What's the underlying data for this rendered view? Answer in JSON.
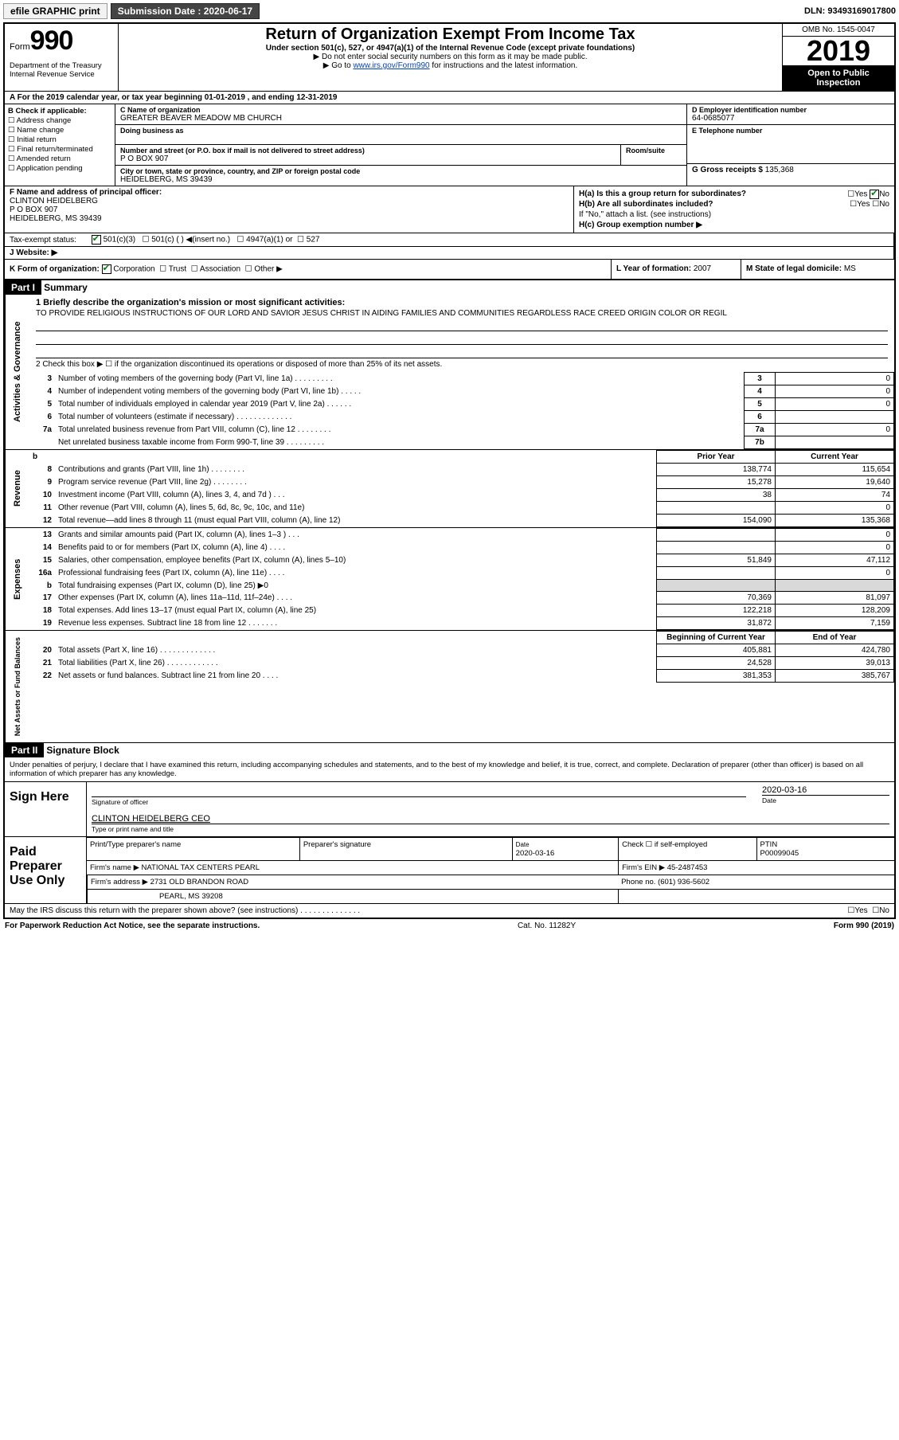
{
  "topbar": {
    "efile": "efile GRAPHIC print",
    "submission_label": "Submission Date : 2020-06-17",
    "dln": "DLN: 93493169017800"
  },
  "header": {
    "form_prefix": "Form",
    "form_num": "990",
    "title": "Return of Organization Exempt From Income Tax",
    "sub1": "Under section 501(c), 527, or 4947(a)(1) of the Internal Revenue Code (except private foundations)",
    "sub2": "▶ Do not enter social security numbers on this form as it may be made public.",
    "sub3_pre": "▶ Go to ",
    "sub3_link": "www.irs.gov/Form990",
    "sub3_post": " for instructions and the latest information.",
    "omb": "OMB No. 1545-0047",
    "year": "2019",
    "open_pub": "Open to Public Inspection",
    "dept": "Department of the Treasury\nInternal Revenue Service"
  },
  "a_line": "A For the 2019 calendar year, or tax year beginning 01-01-2019   , and ending 12-31-2019",
  "b": {
    "title": "B Check if applicable:",
    "items": [
      "Address change",
      "Name change",
      "Initial return",
      "Final return/terminated",
      "Amended return",
      "Application pending"
    ]
  },
  "c": {
    "name_lbl": "C Name of organization",
    "name": "GREATER BEAVER MEADOW MB CHURCH",
    "dba_lbl": "Doing business as",
    "addr_lbl": "Number and street (or P.O. box if mail is not delivered to street address)",
    "room_lbl": "Room/suite",
    "addr": "P O BOX 907",
    "city_lbl": "City or town, state or province, country, and ZIP or foreign postal code",
    "city": "HEIDELBERG, MS  39439"
  },
  "d": {
    "lbl": "D Employer identification number",
    "val": "64-0685077"
  },
  "e": {
    "lbl": "E Telephone number",
    "val": ""
  },
  "g": {
    "lbl": "G Gross receipts $",
    "val": "135,368"
  },
  "f": {
    "lbl": "F  Name and address of principal officer:",
    "v1": "CLINTON HEIDELBERG",
    "v2": "P O BOX 907",
    "v3": "HEIDELBERG, MS  39439"
  },
  "h": {
    "a": "H(a)  Is this a group return for subordinates?",
    "b": "H(b)  Are all subordinates included?",
    "b_note": "If \"No,\" attach a list. (see instructions)",
    "c": "H(c)  Group exemption number ▶",
    "yes": "Yes",
    "no": "No"
  },
  "i": {
    "lbl": "Tax-exempt status:",
    "o1": "501(c)(3)",
    "o2": "501(c) (  ) ◀(insert no.)",
    "o3": "4947(a)(1) or",
    "o4": "527"
  },
  "j": {
    "lbl": "J   Website: ▶"
  },
  "k": {
    "lbl": "K Form of organization:",
    "o1": "Corporation",
    "o2": "Trust",
    "o3": "Association",
    "o4": "Other ▶"
  },
  "l": {
    "lbl": "L Year of formation:",
    "val": "2007"
  },
  "m": {
    "lbl": "M State of legal domicile:",
    "val": "MS"
  },
  "partI": {
    "tag": "Part I",
    "title": "Summary",
    "q1_lbl": "1  Briefly describe the organization's mission or most significant activities:",
    "q1_txt": "TO PROVIDE RELIGIOUS INSTRUCTIONS OF OUR LORD AND SAVIOR JESUS CHRIST IN AIDING FAMILIES AND COMMUNITIES REGARDLESS RACE CREED ORIGIN COLOR OR REGIL",
    "q2": "2    Check this box ▶ ☐  if the organization discontinued its operations or disposed of more than 25% of its net assets.",
    "rows_ag": [
      {
        "n": "3",
        "d": "Number of voting members of the governing body (Part VI, line 1a)  .   .   .   .   .   .   .   .   .",
        "rn": "3",
        "v": "0"
      },
      {
        "n": "4",
        "d": "Number of independent voting members of the governing body (Part VI, line 1b)   .   .   .   .   .",
        "rn": "4",
        "v": "0"
      },
      {
        "n": "5",
        "d": "Total number of individuals employed in calendar year 2019 (Part V, line 2a)   .   .   .   .   .   .",
        "rn": "5",
        "v": "0"
      },
      {
        "n": "6",
        "d": "Total number of volunteers (estimate if necessary)    .   .   .   .   .   .   .   .   .   .   .   .   .",
        "rn": "6",
        "v": ""
      },
      {
        "n": "7a",
        "d": "Total unrelated business revenue from Part VIII, column (C), line 12    .   .   .   .   .   .   .   .",
        "rn": "7a",
        "v": "0"
      },
      {
        "n": "",
        "d": "Net unrelated business taxable income from Form 990-T, line 39    .   .   .   .   .   .   .   .   .",
        "rn": "7b",
        "v": ""
      }
    ],
    "col_py": "Prior Year",
    "col_cy": "Current Year",
    "rows_rev": [
      {
        "n": "8",
        "d": "Contributions and grants (Part VIII, line 1h)    .   .   .   .   .   .   .   .",
        "py": "138,774",
        "cy": "115,654"
      },
      {
        "n": "9",
        "d": "Program service revenue (Part VIII, line 2g)    .   .   .   .   .   .   .   .",
        "py": "15,278",
        "cy": "19,640"
      },
      {
        "n": "10",
        "d": "Investment income (Part VIII, column (A), lines 3, 4, and 7d )    .   .   .",
        "py": "38",
        "cy": "74"
      },
      {
        "n": "11",
        "d": "Other revenue (Part VIII, column (A), lines 5, 6d, 8c, 9c, 10c, and 11e)",
        "py": "",
        "cy": "0"
      },
      {
        "n": "12",
        "d": "Total revenue—add lines 8 through 11 (must equal Part VIII, column (A), line 12)",
        "py": "154,090",
        "cy": "135,368"
      }
    ],
    "rows_exp": [
      {
        "n": "13",
        "d": "Grants and similar amounts paid (Part IX, column (A), lines 1–3 )   .   .   .",
        "py": "",
        "cy": "0"
      },
      {
        "n": "14",
        "d": "Benefits paid to or for members (Part IX, column (A), line 4)    .   .   .   .",
        "py": "",
        "cy": "0"
      },
      {
        "n": "15",
        "d": "Salaries, other compensation, employee benefits (Part IX, column (A), lines 5–10)",
        "py": "51,849",
        "cy": "47,112"
      },
      {
        "n": "16a",
        "d": "Professional fundraising fees (Part IX, column (A), line 11e)    .   .   .   .",
        "py": "",
        "cy": "0"
      },
      {
        "n": "b",
        "d": "Total fundraising expenses (Part IX, column (D), line 25) ▶0",
        "py": "shade",
        "cy": "shade"
      },
      {
        "n": "17",
        "d": "Other expenses (Part IX, column (A), lines 11a–11d, 11f–24e)    .   .   .   .",
        "py": "70,369",
        "cy": "81,097"
      },
      {
        "n": "18",
        "d": "Total expenses. Add lines 13–17 (must equal Part IX, column (A), line 25)",
        "py": "122,218",
        "cy": "128,209"
      },
      {
        "n": "19",
        "d": "Revenue less expenses. Subtract line 18 from line 12   .   .   .   .   .   .   .",
        "py": "31,872",
        "cy": "7,159"
      }
    ],
    "col_bcy": "Beginning of Current Year",
    "col_eoy": "End of Year",
    "rows_na": [
      {
        "n": "20",
        "d": "Total assets (Part X, line 16)   .   .   .   .   .   .   .   .   .   .   .   .   .",
        "py": "405,881",
        "cy": "424,780"
      },
      {
        "n": "21",
        "d": "Total liabilities (Part X, line 26)   .   .   .   .   .   .   .   .   .   .   .   .",
        "py": "24,528",
        "cy": "39,013"
      },
      {
        "n": "22",
        "d": "Net assets or fund balances. Subtract line 21 from line 20   .   .   .   .",
        "py": "381,353",
        "cy": "385,767"
      }
    ],
    "side_ag": "Activities & Governance",
    "side_rev": "Revenue",
    "side_exp": "Expenses",
    "side_na": "Net Assets or Fund Balances"
  },
  "partII": {
    "tag": "Part II",
    "title": "Signature Block",
    "decl": "Under penalties of perjury, I declare that I have examined this return, including accompanying schedules and statements, and to the best of my knowledge and belief, it is true, correct, and complete. Declaration of preparer (other than officer) is based on all information of which preparer has any knowledge.",
    "sign_here": "Sign Here",
    "sig_of_officer": "Signature of officer",
    "date_lbl": "Date",
    "date": "2020-03-16",
    "officer": "CLINTON HEIDELBERG CEO",
    "type_name": "Type or print name and title",
    "paid": "Paid Preparer Use Only",
    "pp_name_lbl": "Print/Type preparer's name",
    "pp_sig_lbl": "Preparer's signature",
    "pp_date": "2020-03-16",
    "check_self": "Check ☐ if self-employed",
    "ptin_lbl": "PTIN",
    "ptin": "P00099045",
    "firm_name_lbl": "Firm's name   ▶",
    "firm_name": "NATIONAL TAX CENTERS PEARL",
    "firm_ein_lbl": "Firm's EIN ▶",
    "firm_ein": "45-2487453",
    "firm_addr_lbl": "Firm's address ▶",
    "firm_addr1": "2731 OLD BRANDON ROAD",
    "firm_addr2": "PEARL, MS  39208",
    "phone_lbl": "Phone no.",
    "phone": "(601) 936-5602",
    "may_discuss": "May the IRS discuss this return with the preparer shown above? (see instructions)    .   .   .   .   .   .   .   .   .   .   .   .   .   .",
    "yes": "Yes",
    "no": "No"
  },
  "footer": {
    "pra": "For Paperwork Reduction Act Notice, see the separate instructions.",
    "cat": "Cat. No. 11282Y",
    "form": "Form 990 (2019)"
  }
}
